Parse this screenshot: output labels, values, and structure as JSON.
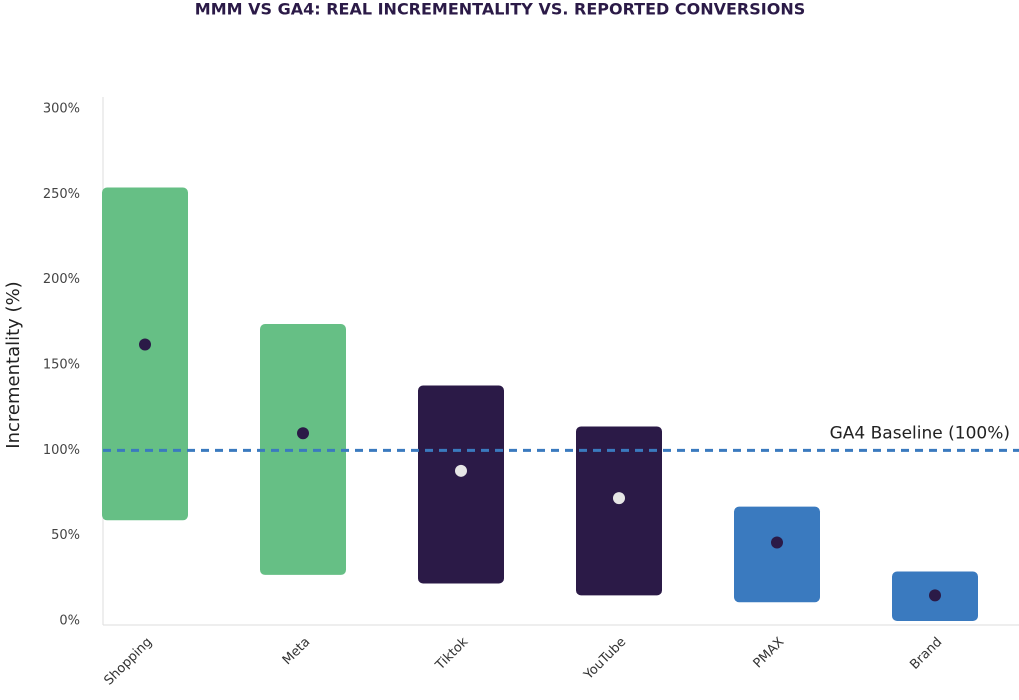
{
  "chart_data": {
    "type": "range_bar",
    "title": "MMM VS GA4: REAL INCREMENTALITY VS. REPORTED CONVERSIONS",
    "y_label": "Incrementality (%)",
    "categories": [
      "Shopping",
      "Meta",
      "Tiktok",
      "YouTube",
      "PMAX",
      "Brand"
    ],
    "low": [
      59,
      27,
      22,
      15,
      11,
      0
    ],
    "high": [
      254,
      174,
      138,
      114,
      67,
      29
    ],
    "point": [
      162,
      110,
      88,
      72,
      46,
      15
    ],
    "colors": [
      "#66bf85",
      "#66bf85",
      "#2b1a47",
      "#2b1a47",
      "#3a7abf",
      "#3a7abf"
    ],
    "point_colors": [
      "#2b1a47",
      "#2b1a47",
      "#e6e6e6",
      "#e6e6e6",
      "#2b1a47",
      "#2b1a47"
    ],
    "ylim": [
      0,
      300
    ],
    "yticks": [
      {
        "value": 0,
        "label": "0%"
      },
      {
        "value": 50,
        "label": "50%"
      },
      {
        "value": 100,
        "label": "100%"
      },
      {
        "value": 150,
        "label": "150%"
      },
      {
        "value": 200,
        "label": "200%"
      },
      {
        "value": 250,
        "label": "250%"
      },
      {
        "value": 300,
        "label": "300%"
      }
    ],
    "baseline": {
      "value": 100,
      "label": "GA4 Baseline (100%)",
      "color": "#3a7abf"
    }
  }
}
